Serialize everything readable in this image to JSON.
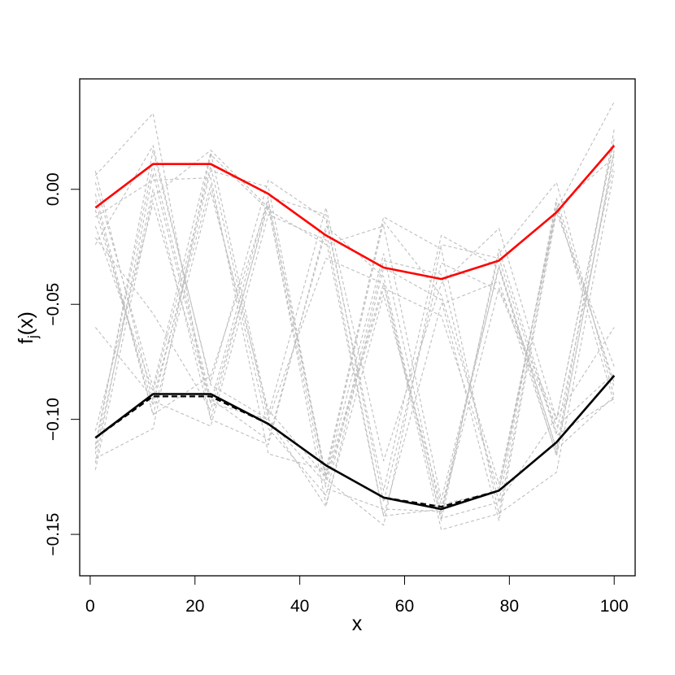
{
  "chart_data": {
    "type": "line",
    "title": "",
    "xlabel": "x",
    "ylabel_main": "f",
    "ylabel_sub": "j",
    "ylabel_tail": "(x)",
    "xlim": [
      -2,
      104
    ],
    "ylim": [
      -0.168,
      0.048
    ],
    "x_ticks": [
      0,
      20,
      40,
      60,
      80,
      100
    ],
    "x_tick_labels": [
      "0",
      "20",
      "40",
      "60",
      "80",
      "100"
    ],
    "y_ticks": [
      0.0,
      -0.05,
      -0.1,
      -0.15
    ],
    "y_tick_labels": [
      "0.00",
      "−0.05",
      "−0.10",
      "−0.15"
    ],
    "grid": false,
    "legend": "none",
    "x": [
      1,
      12,
      23,
      34,
      45,
      56,
      67,
      78,
      89,
      100
    ],
    "series": [
      {
        "role": "upper",
        "color": "#ff0000",
        "style": "solid",
        "values": [
          -0.008,
          0.011,
          0.011,
          -0.002,
          -0.02,
          -0.034,
          -0.039,
          -0.031,
          -0.01,
          0.019
        ]
      },
      {
        "role": "lower",
        "color": "#000000",
        "style": "solid",
        "values": [
          -0.108,
          -0.089,
          -0.089,
          -0.102,
          -0.12,
          -0.134,
          -0.139,
          -0.131,
          -0.11,
          -0.081
        ]
      },
      {
        "role": "lower-dashed",
        "color": "#000000",
        "style": "dashed",
        "values": [
          -0.108,
          -0.09,
          -0.09,
          -0.102,
          -0.12,
          -0.134,
          -0.138,
          -0.131,
          -0.11,
          -0.081
        ]
      },
      {
        "role": "sample",
        "color": "#bebebe",
        "style": "dashed",
        "values": [
          0.006,
          0.033,
          -0.1,
          -0.005,
          -0.124,
          -0.014,
          -0.046,
          -0.128,
          -0.009,
          0.038
        ]
      },
      {
        "role": "sample",
        "color": "#bebebe",
        "style": "dashed",
        "values": [
          -0.113,
          0.017,
          -0.084,
          0.004,
          -0.013,
          -0.131,
          -0.02,
          -0.034,
          -0.113,
          0.026
        ]
      },
      {
        "role": "sample",
        "color": "#bebebe",
        "style": "dashed",
        "values": [
          0.003,
          -0.086,
          0.016,
          -0.098,
          -0.008,
          -0.118,
          -0.041,
          -0.017,
          -0.1,
          0.021
        ]
      },
      {
        "role": "sample",
        "color": "#bebebe",
        "style": "dashed",
        "values": [
          -0.002,
          -0.098,
          -0.001,
          -0.096,
          -0.125,
          -0.028,
          -0.141,
          -0.028,
          0.003,
          -0.09
        ]
      },
      {
        "role": "sample",
        "color": "#bebebe",
        "style": "dashed",
        "values": [
          -0.111,
          0.011,
          -0.091,
          -0.109,
          -0.018,
          -0.142,
          -0.05,
          -0.04,
          -0.115,
          0.016
        ]
      },
      {
        "role": "sample",
        "color": "#bebebe",
        "style": "dashed",
        "values": [
          -0.009,
          -0.094,
          0.008,
          0.001,
          -0.126,
          -0.041,
          -0.143,
          -0.136,
          -0.004,
          -0.086
        ]
      },
      {
        "role": "sample",
        "color": "#bebebe",
        "style": "dashed",
        "values": [
          -0.012,
          0.004,
          0.005,
          -0.115,
          -0.122,
          -0.012,
          -0.026,
          -0.141,
          -0.123,
          0.008
        ]
      },
      {
        "role": "sample",
        "color": "#bebebe",
        "style": "dashed",
        "values": [
          -0.105,
          -0.006,
          -0.093,
          -0.003,
          -0.011,
          -0.136,
          -0.032,
          -0.044,
          -0.103,
          -0.08
        ]
      },
      {
        "role": "sample",
        "color": "#bebebe",
        "style": "dashed",
        "values": [
          -0.021,
          -0.054,
          -0.096,
          -0.007,
          -0.137,
          -0.046,
          -0.137,
          -0.131,
          -0.006,
          -0.093
        ]
      },
      {
        "role": "sample",
        "color": "#bebebe",
        "style": "dashed",
        "values": [
          -0.115,
          0.0,
          -0.1,
          -0.111,
          -0.016,
          -0.038,
          -0.144,
          -0.026,
          -0.106,
          0.012
        ]
      },
      {
        "role": "sample",
        "color": "#bebebe",
        "style": "dashed",
        "values": [
          -0.024,
          0.019,
          -0.085,
          -0.1,
          -0.128,
          -0.043,
          -0.055,
          -0.131,
          -0.008,
          -0.084
        ]
      },
      {
        "role": "sample",
        "color": "#bebebe",
        "style": "dashed",
        "values": [
          -0.117,
          -0.104,
          0.015,
          -0.009,
          -0.024,
          -0.016,
          -0.135,
          -0.034,
          -0.116,
          0.017
        ]
      },
      {
        "role": "sample",
        "color": "#bebebe",
        "style": "dashed",
        "values": [
          -0.06,
          -0.091,
          0.002,
          -0.104,
          -0.133,
          -0.031,
          -0.037,
          -0.136,
          -0.099,
          -0.06
        ]
      },
      {
        "role": "sample",
        "color": "#bebebe",
        "style": "dashed",
        "values": [
          0.008,
          -0.092,
          -0.103,
          -0.011,
          -0.022,
          -0.142,
          -0.139,
          -0.033,
          -0.113,
          -0.09
        ]
      },
      {
        "role": "sample",
        "color": "#bebebe",
        "style": "dashed",
        "values": [
          -0.122,
          -0.003,
          0.017,
          -0.008,
          -0.13,
          -0.139,
          -0.14,
          -0.043,
          -0.1,
          0.022
        ]
      },
      {
        "role": "sample",
        "color": "#bebebe",
        "style": "dashed",
        "values": [
          -0.005,
          -0.098,
          -0.081,
          -0.005,
          -0.126,
          -0.146,
          -0.024,
          -0.03,
          -0.107,
          -0.091
        ]
      },
      {
        "role": "sample",
        "color": "#bebebe",
        "style": "dashed",
        "values": [
          -0.119,
          0.007,
          -0.093,
          -0.1,
          -0.03,
          -0.041,
          -0.148,
          -0.141,
          -0.008,
          0.014
        ]
      },
      {
        "role": "sample",
        "color": "#bebebe",
        "style": "dashed",
        "values": [
          -0.016,
          -0.088,
          0.01,
          -0.1,
          -0.138,
          -0.034,
          -0.048,
          -0.144,
          -0.01,
          -0.077
        ]
      }
    ]
  }
}
